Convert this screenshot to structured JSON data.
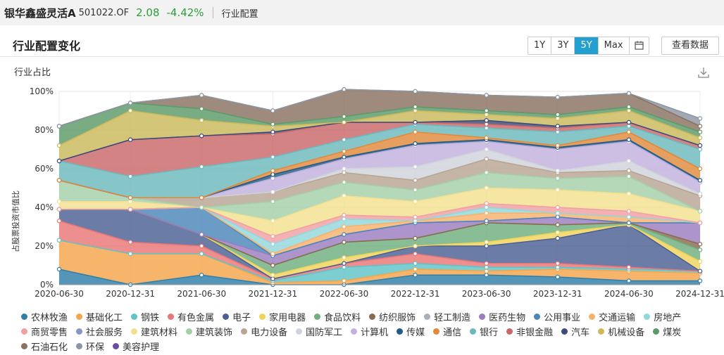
{
  "header": {
    "fund_name": "银华鑫盛灵活A",
    "fund_code": "501022.OF",
    "nav": "2.08",
    "change": "-4.42%",
    "section": "行业配置"
  },
  "panel": {
    "title": "行业配置变化",
    "ranges": [
      "1Y",
      "3Y",
      "5Y",
      "Max"
    ],
    "active_range": "5Y",
    "view_data_label": "查看数据",
    "y_top_label": "行业占比"
  },
  "icons": {
    "calendar": "calendar-icon",
    "download": "download-icon"
  },
  "chart_data": {
    "type": "area",
    "stacked": true,
    "ylabel": "占股票投资市值比",
    "ylim": [
      0,
      100
    ],
    "yticks": [
      "0%",
      "20%",
      "40%",
      "60%",
      "80%",
      "100%"
    ],
    "x": [
      "2020-06-30",
      "2020-12-31",
      "2021-06-30",
      "2021-12-31",
      "2022-06-30",
      "2022-12-31",
      "2023-06-30",
      "2023-12-31",
      "2024-06-30",
      "2024-12-31"
    ],
    "grid": true,
    "legend_position": "bottom",
    "series": [
      {
        "name": "农林牧渔",
        "color": "#2f7fa8",
        "values": [
          8,
          0,
          5,
          0,
          0,
          5,
          5,
          4,
          2,
          2
        ]
      },
      {
        "name": "基础化工",
        "color": "#f5a54a",
        "values": [
          15,
          16,
          11,
          1,
          2,
          3,
          2,
          4,
          5,
          4
        ]
      },
      {
        "name": "钢铁",
        "color": "#5fc3c7",
        "values": [
          0,
          0,
          0,
          1,
          7,
          3,
          2,
          1,
          1,
          1
        ]
      },
      {
        "name": "有色金属",
        "color": "#e97576",
        "values": [
          10,
          6,
          4,
          1,
          2,
          5,
          2,
          2,
          1,
          0
        ]
      },
      {
        "name": "电子",
        "color": "#4a5f94",
        "values": [
          6,
          17,
          6,
          0,
          0,
          4,
          9,
          13,
          22,
          0
        ]
      },
      {
        "name": "家用电器",
        "color": "#efd35a",
        "values": [
          0,
          0,
          0,
          2,
          3,
          0,
          2,
          3,
          0,
          5
        ]
      },
      {
        "name": "食品饮料",
        "color": "#6fae7e",
        "values": [
          0,
          0,
          0,
          5,
          8,
          4,
          10,
          4,
          1,
          6
        ]
      },
      {
        "name": "纺织服饰",
        "color": "#8a6a4f",
        "values": [
          0,
          0,
          0,
          0,
          0,
          0,
          0,
          0,
          0,
          3
        ]
      },
      {
        "name": "轻工制造",
        "color": "#a9b0bb",
        "values": [
          0,
          0,
          0,
          0,
          0,
          0,
          0,
          0,
          0,
          0
        ]
      },
      {
        "name": "医药生物",
        "color": "#9b7dc0",
        "values": [
          0,
          0,
          0,
          5,
          4,
          8,
          1,
          4,
          0,
          11
        ]
      },
      {
        "name": "公用事业",
        "color": "#4a86b8",
        "values": [
          0,
          0,
          14,
          0,
          0,
          0,
          0,
          0,
          0,
          0
        ]
      },
      {
        "name": "交通运输",
        "color": "#f6b26b",
        "values": [
          0,
          0,
          0,
          1,
          4,
          1,
          4,
          2,
          3,
          0
        ]
      },
      {
        "name": "房地产",
        "color": "#92d7db",
        "values": [
          0,
          0,
          0,
          5,
          4,
          0,
          3,
          0,
          0,
          0
        ]
      },
      {
        "name": "商贸零售",
        "color": "#f0a0a2",
        "values": [
          0,
          0,
          0,
          4,
          2,
          2,
          2,
          3,
          3,
          0
        ]
      },
      {
        "name": "社会服务",
        "color": "#8a95c4",
        "values": [
          0,
          0,
          0,
          0,
          0,
          0,
          0,
          0,
          0,
          0
        ]
      },
      {
        "name": "建筑材料",
        "color": "#f3e08f",
        "values": [
          4,
          4,
          0,
          8,
          10,
          8,
          8,
          9,
          9,
          6
        ]
      },
      {
        "name": "建筑装饰",
        "color": "#a4cfa8",
        "values": [
          11,
          2,
          0,
          10,
          7,
          6,
          8,
          6,
          9,
          0
        ]
      },
      {
        "name": "电力设备",
        "color": "#b8a593",
        "values": [
          0,
          0,
          5,
          5,
          5,
          5,
          7,
          3,
          3,
          8
        ]
      },
      {
        "name": "国防军工",
        "color": "#cfd3da",
        "values": [
          0,
          0,
          0,
          0,
          2,
          7,
          5,
          1,
          5,
          1
        ]
      },
      {
        "name": "计算机",
        "color": "#c2b0dd",
        "values": [
          0,
          0,
          0,
          7,
          5,
          11,
          4,
          11,
          10,
          6
        ]
      },
      {
        "name": "传媒",
        "color": "#235b86",
        "values": [
          0,
          0,
          0,
          2,
          1,
          1,
          1,
          1,
          1,
          1
        ]
      },
      {
        "name": "通信",
        "color": "#e08a3b",
        "values": [
          0,
          0,
          0,
          2,
          3,
          6,
          1,
          1,
          4,
          6
        ]
      },
      {
        "name": "银行",
        "color": "#6bb9bd",
        "values": [
          10,
          11,
          16,
          7,
          6,
          4,
          5,
          7,
          3,
          10
        ]
      },
      {
        "name": "非银金融",
        "color": "#c96868",
        "values": [
          0,
          19,
          16,
          12,
          9,
          1,
          2,
          2,
          2,
          2
        ]
      },
      {
        "name": "汽车",
        "color": "#3d4b7a",
        "values": [
          0,
          0,
          0,
          1,
          0,
          0,
          2,
          1,
          0,
          0
        ]
      },
      {
        "name": "机械设备",
        "color": "#cbb95a",
        "values": [
          8,
          15,
          8,
          3,
          0,
          6,
          3,
          4,
          6,
          4
        ]
      },
      {
        "name": "煤炭",
        "color": "#5c9a68",
        "values": [
          10,
          4,
          6,
          1,
          3,
          2,
          2,
          2,
          2,
          3
        ]
      },
      {
        "name": "石油石化",
        "color": "#8a7260",
        "values": [
          0,
          0,
          7,
          7,
          14,
          8,
          8,
          9,
          7,
          3
        ]
      },
      {
        "name": "环保",
        "color": "#8d96a3",
        "values": [
          0,
          0,
          0,
          0,
          0,
          0,
          0,
          0,
          0,
          4
        ]
      },
      {
        "name": "美容护理",
        "color": "#6a4fa0",
        "values": [
          0,
          0,
          0,
          0,
          0,
          0,
          0,
          0,
          0,
          0
        ]
      }
    ]
  }
}
